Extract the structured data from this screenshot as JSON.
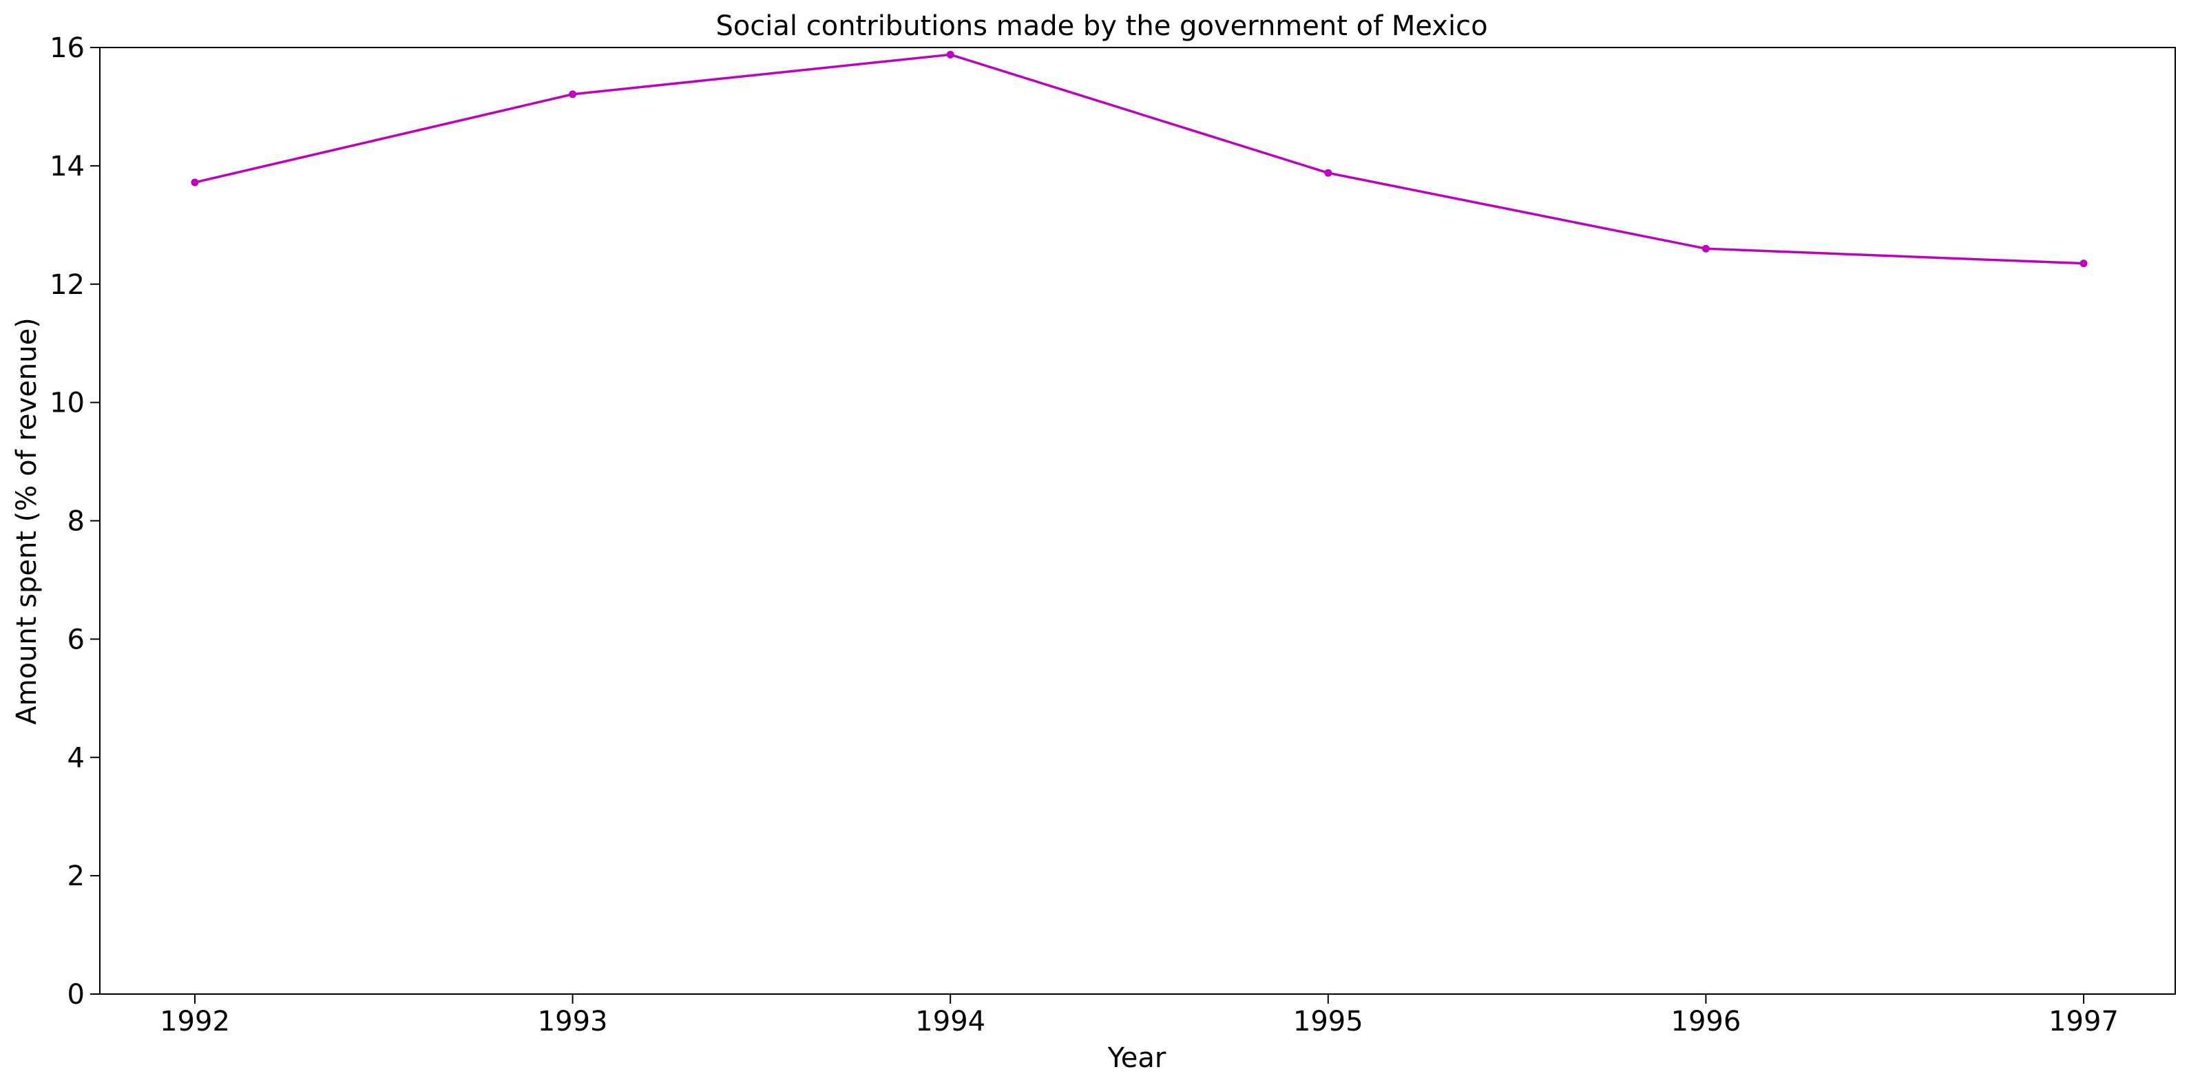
{
  "chart_data": {
    "type": "line",
    "title": "Social contributions made by the government of Mexico",
    "xlabel": "Year",
    "ylabel": "Amount spent (% of revenue)",
    "x": [
      "1992",
      "1993",
      "1994",
      "1995",
      "1996",
      "1997"
    ],
    "y_ticks": [
      "0",
      "2",
      "4",
      "6",
      "8",
      "10",
      "12",
      "14",
      "16"
    ],
    "ylim": [
      0,
      16
    ],
    "grid": false,
    "legend": "none",
    "series": [
      {
        "color": "#c000c0",
        "marker": "circle",
        "values": [
          13.72,
          15.21,
          15.88,
          13.88,
          12.6,
          12.35
        ]
      }
    ]
  }
}
